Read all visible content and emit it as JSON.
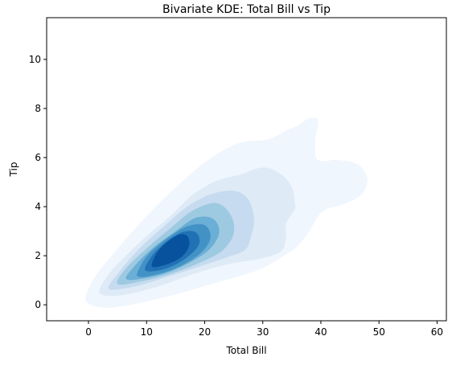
{
  "chart_data": {
    "type": "kde-contour",
    "title": "Bivariate KDE: Total Bill vs Tip",
    "xlabel": "Total Bill",
    "ylabel": "Tip",
    "xlim": [
      -7.2,
      61.6
    ],
    "ylim": [
      -0.65,
      11.7
    ],
    "xticks": [
      0,
      10,
      20,
      30,
      40,
      50,
      60
    ],
    "yticks": [
      0,
      2,
      4,
      6,
      8,
      10
    ],
    "grid": false,
    "legend": "none",
    "colormap": "Blues",
    "fill": true,
    "levels": [
      {
        "level": 1,
        "color": "#f0f6fd",
        "polygon": [
          [
            -0.5,
            0.2
          ],
          [
            2,
            -0.1
          ],
          [
            6,
            -0.05
          ],
          [
            13,
            0.3
          ],
          [
            22,
            0.9
          ],
          [
            29,
            1.4
          ],
          [
            33,
            1.9
          ],
          [
            36,
            2.4
          ],
          [
            38,
            3.0
          ],
          [
            39.5,
            3.6
          ],
          [
            41,
            3.9
          ],
          [
            44,
            4.1
          ],
          [
            47,
            4.5
          ],
          [
            48,
            5.1
          ],
          [
            46.5,
            5.7
          ],
          [
            43,
            5.9
          ],
          [
            39.5,
            5.9
          ],
          [
            39,
            6.6
          ],
          [
            39.5,
            7.5
          ],
          [
            38,
            7.6
          ],
          [
            36,
            7.3
          ],
          [
            34,
            7.1
          ],
          [
            31,
            6.75
          ],
          [
            27,
            6.65
          ],
          [
            24,
            6.4
          ],
          [
            20,
            5.8
          ],
          [
            16,
            5.0
          ],
          [
            12,
            4.1
          ],
          [
            8,
            3.1
          ],
          [
            4,
            2.0
          ],
          [
            1,
            1.1
          ]
        ]
      },
      {
        "level": 2,
        "color": "#deebf7",
        "polygon": [
          [
            2,
            0.45
          ],
          [
            6,
            0.4
          ],
          [
            12,
            0.75
          ],
          [
            18,
            1.25
          ],
          [
            24,
            1.65
          ],
          [
            29,
            1.85
          ],
          [
            33,
            2.15
          ],
          [
            34,
            2.7
          ],
          [
            34,
            3.3
          ],
          [
            35.5,
            3.9
          ],
          [
            35.5,
            4.2
          ],
          [
            35,
            4.8
          ],
          [
            33,
            5.35
          ],
          [
            30,
            5.6
          ],
          [
            26,
            5.3
          ],
          [
            22,
            5.05
          ],
          [
            18,
            4.5
          ],
          [
            14,
            3.6
          ],
          [
            10,
            2.8
          ],
          [
            6,
            1.9
          ],
          [
            3,
            1.1
          ]
        ]
      },
      {
        "level": 3,
        "color": "#c6dbef",
        "polygon": [
          [
            3.5,
            0.65
          ],
          [
            8,
            0.75
          ],
          [
            13,
            1.1
          ],
          [
            19,
            1.55
          ],
          [
            24,
            1.95
          ],
          [
            27,
            2.25
          ],
          [
            28,
            2.8
          ],
          [
            28.5,
            3.5
          ],
          [
            27.5,
            4.3
          ],
          [
            25,
            4.65
          ],
          [
            21,
            4.5
          ],
          [
            17,
            4.0
          ],
          [
            13,
            3.2
          ],
          [
            9,
            2.35
          ],
          [
            5.5,
            1.4
          ]
        ]
      },
      {
        "level": 4,
        "color": "#9ecae1",
        "polygon": [
          [
            5,
            0.85
          ],
          [
            9,
            0.95
          ],
          [
            14,
            1.25
          ],
          [
            19,
            1.7
          ],
          [
            23,
            2.2
          ],
          [
            25,
            2.9
          ],
          [
            24.5,
            3.65
          ],
          [
            22,
            4.15
          ],
          [
            18,
            3.85
          ],
          [
            14,
            3.1
          ],
          [
            10,
            2.3
          ],
          [
            6.5,
            1.5
          ]
        ]
      },
      {
        "level": 5,
        "color": "#6baed6",
        "polygon": [
          [
            6.5,
            1.05
          ],
          [
            10,
            1.1
          ],
          [
            14,
            1.35
          ],
          [
            18,
            1.8
          ],
          [
            21,
            2.3
          ],
          [
            22.5,
            2.95
          ],
          [
            21.5,
            3.5
          ],
          [
            18.5,
            3.55
          ],
          [
            15,
            3.0
          ],
          [
            11,
            2.3
          ],
          [
            8,
            1.6
          ]
        ]
      },
      {
        "level": 6,
        "color": "#4292c6",
        "polygon": [
          [
            8.5,
            1.15
          ],
          [
            12,
            1.25
          ],
          [
            16,
            1.6
          ],
          [
            19.5,
            2.15
          ],
          [
            21,
            2.75
          ],
          [
            20,
            3.25
          ],
          [
            17,
            3.2
          ],
          [
            13.5,
            2.7
          ],
          [
            10.5,
            2.1
          ],
          [
            9,
            1.6
          ]
        ]
      },
      {
        "level": 7,
        "color": "#2171b5",
        "polygon": [
          [
            9.8,
            1.4
          ],
          [
            13,
            1.45
          ],
          [
            16.5,
            1.85
          ],
          [
            19,
            2.45
          ],
          [
            18.5,
            2.95
          ],
          [
            16,
            2.95
          ],
          [
            13,
            2.5
          ],
          [
            10.8,
            1.95
          ]
        ]
      },
      {
        "level": 8,
        "color": "#08519c",
        "polygon": [
          [
            11,
            1.55
          ],
          [
            13.5,
            1.65
          ],
          [
            16,
            1.95
          ],
          [
            17.3,
            2.4
          ],
          [
            17,
            2.8
          ],
          [
            15.5,
            2.85
          ],
          [
            13,
            2.45
          ],
          [
            11.5,
            2.0
          ]
        ]
      }
    ]
  }
}
